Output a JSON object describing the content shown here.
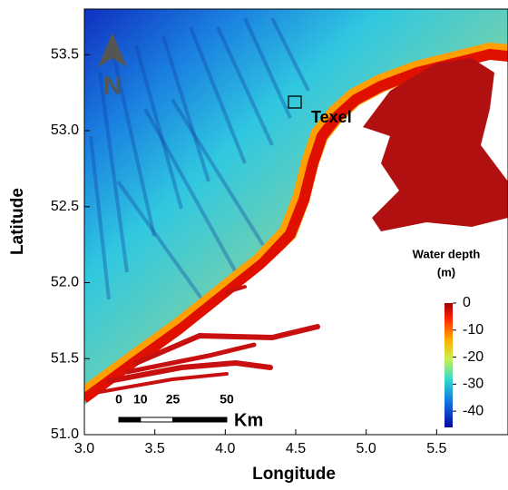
{
  "map": {
    "x_axis": {
      "label": "Longitude",
      "lim": [
        3.0,
        6.0
      ],
      "ticks": [
        {
          "value": 3,
          "label": "3.0"
        },
        {
          "value": 3.5,
          "label": "3.5"
        },
        {
          "value": 4,
          "label": "4.0"
        },
        {
          "value": 4.5,
          "label": "4.5"
        },
        {
          "value": 5,
          "label": "5.0"
        },
        {
          "value": 5.5,
          "label": "5.5"
        }
      ]
    },
    "y_axis": {
      "label": "Latitude",
      "lim": [
        51.0,
        53.8
      ],
      "ticks": [
        {
          "value": 51,
          "label": "51.0"
        },
        {
          "value": 51.5,
          "label": "51.5"
        },
        {
          "value": 52,
          "label": "52.0"
        },
        {
          "value": 52.5,
          "label": "52.5"
        },
        {
          "value": 53,
          "label": "53.0"
        },
        {
          "value": 53.5,
          "label": "53.5"
        }
      ]
    },
    "place_label": "Texel",
    "north_label": "N",
    "colorbar": {
      "title_lines": [
        "Water depth",
        "(m)"
      ],
      "lim": [
        -46,
        0
      ],
      "ticks": [
        0,
        -10,
        -20,
        -30,
        -40
      ]
    },
    "scale_bar": {
      "ticks": [
        0,
        10,
        25,
        50
      ],
      "unit": "Km"
    }
  }
}
